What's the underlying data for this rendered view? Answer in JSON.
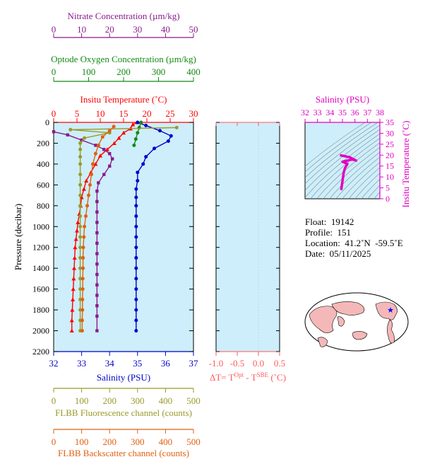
{
  "axes": {
    "nitrate": {
      "title": "Nitrate Concentration (µm/kg)",
      "ticks": [
        "0",
        "10",
        "20",
        "30",
        "40",
        "50"
      ],
      "range": [
        0,
        50
      ],
      "color": "#8b1a8b"
    },
    "oxygen": {
      "title": "Optode Oxygen Concentration (µm/kg)",
      "ticks": [
        "0",
        "100",
        "200",
        "300",
        "400"
      ],
      "range": [
        0,
        400
      ],
      "color": "#128a12"
    },
    "temperature": {
      "title": "Insitu Temperature (˚C)",
      "ticks": [
        "0",
        "5",
        "10",
        "15",
        "20",
        "25",
        "30"
      ],
      "range": [
        0,
        30
      ],
      "color": "#ff0000"
    },
    "pressure": {
      "title": "Pressure (decibar)",
      "ticks": [
        "0",
        "200",
        "400",
        "600",
        "800",
        "1000",
        "1200",
        "1400",
        "1600",
        "1800",
        "2000",
        "2200"
      ],
      "range": [
        0,
        2200
      ],
      "color": "#000000"
    },
    "salinity": {
      "title": "Salinity (PSU)",
      "ticks": [
        "32",
        "33",
        "34",
        "35",
        "36",
        "37"
      ],
      "range": [
        32,
        37
      ],
      "color": "#0000cc"
    },
    "fluorescence": {
      "title": "FLBB Fluorescence channel (counts)",
      "ticks": [
        "0",
        "100",
        "200",
        "300",
        "400",
        "500"
      ],
      "range": [
        0,
        500
      ],
      "color": "#9a9a2a"
    },
    "backscatter": {
      "title": "FLBB Backscatter channel (counts)",
      "ticks": [
        "0",
        "100",
        "200",
        "300",
        "400",
        "500"
      ],
      "range": [
        0,
        500
      ],
      "color": "#e06010"
    },
    "dt": {
      "title_prefix": "ΔT= T",
      "title_sup1": "Opt",
      "title_mid": " - T",
      "title_sup2": "SBE",
      "title_suffix": " (˚C)",
      "ticks": [
        "-1.0",
        "-0.5",
        "0.0",
        "0.5"
      ],
      "range": [
        -1.0,
        0.5
      ],
      "color": "#ff5a5a"
    }
  },
  "ts": {
    "salinity_title": "Salinity (PSU)",
    "salinity_ticks": [
      "32",
      "33",
      "34",
      "35",
      "36",
      "37",
      "38"
    ],
    "salinity_range": [
      32,
      38
    ],
    "temp_title": "Insitu Temperature (˚C)",
    "temp_ticks": [
      "0",
      "5",
      "10",
      "15",
      "20",
      "25",
      "30",
      "35"
    ],
    "temp_range": [
      0,
      35
    ],
    "color": "#e000c0"
  },
  "info": {
    "float_label": "Float:",
    "float_value": "19142",
    "profile_label": "Profile:",
    "profile_value": "151",
    "location_label": "Location:",
    "location_value": "41.2˚N  -59.5˚E",
    "date_label": "Date:",
    "date_value": "05/11/2025"
  },
  "chart_data": {
    "type": "line",
    "y_name": "Pressure (decibar)",
    "ylim": [
      2200,
      0
    ],
    "series": [
      {
        "name": "Insitu Temperature",
        "unit": "˚C",
        "color": "#ff0000",
        "marker": "triangle",
        "points": [
          [
            18,
            0
          ],
          [
            17,
            20
          ],
          [
            16.5,
            60
          ],
          [
            15,
            100
          ],
          [
            14,
            150
          ],
          [
            13,
            200
          ],
          [
            11.5,
            260
          ],
          [
            10,
            320
          ],
          [
            9,
            400
          ],
          [
            8,
            480
          ],
          [
            7,
            560
          ],
          [
            6.5,
            640
          ],
          [
            6,
            720
          ],
          [
            5.8,
            800
          ],
          [
            5.5,
            880
          ],
          [
            5.2,
            960
          ],
          [
            5,
            1040
          ],
          [
            4.8,
            1120
          ],
          [
            4.6,
            1200
          ],
          [
            4.5,
            1300
          ],
          [
            4.4,
            1400
          ],
          [
            4.3,
            1500
          ],
          [
            4.2,
            1600
          ],
          [
            4.1,
            1700
          ],
          [
            4.0,
            1800
          ],
          [
            3.9,
            1900
          ],
          [
            3.9,
            2000
          ]
        ]
      },
      {
        "name": "Salinity",
        "unit": "PSU",
        "color": "#0000cc",
        "marker": "circle",
        "points": [
          [
            35.0,
            0
          ],
          [
            35.3,
            30
          ],
          [
            35.8,
            80
          ],
          [
            36.2,
            130
          ],
          [
            36.1,
            180
          ],
          [
            35.6,
            250
          ],
          [
            35.3,
            330
          ],
          [
            35.2,
            400
          ],
          [
            35.0,
            480
          ],
          [
            35.0,
            560
          ],
          [
            34.95,
            640
          ],
          [
            34.95,
            720
          ],
          [
            34.95,
            800
          ],
          [
            34.95,
            900
          ],
          [
            34.95,
            1000
          ],
          [
            34.95,
            1100
          ],
          [
            34.95,
            1200
          ],
          [
            34.95,
            1300
          ],
          [
            34.95,
            1400
          ],
          [
            34.95,
            1500
          ],
          [
            34.95,
            1600
          ],
          [
            34.95,
            1700
          ],
          [
            34.95,
            1800
          ],
          [
            34.95,
            1900
          ],
          [
            34.95,
            2000
          ]
        ]
      },
      {
        "name": "Nitrate",
        "unit": "µm/kg",
        "color": "#8b1a8b",
        "marker": "square",
        "points": [
          [
            0,
            90
          ],
          [
            5,
            120
          ],
          [
            10,
            170
          ],
          [
            15,
            220
          ],
          [
            18,
            260
          ],
          [
            20,
            300
          ],
          [
            21,
            350
          ],
          [
            20,
            420
          ],
          [
            18,
            500
          ],
          [
            16,
            580
          ],
          [
            15.5,
            660
          ],
          [
            15.5,
            760
          ],
          [
            15.5,
            860
          ],
          [
            15.5,
            960
          ],
          [
            15.5,
            1060
          ],
          [
            15.5,
            1160
          ],
          [
            15.5,
            1260
          ],
          [
            15.5,
            1360
          ],
          [
            15.5,
            1460
          ],
          [
            15.5,
            1560
          ],
          [
            15.5,
            1660
          ],
          [
            15.5,
            1760
          ],
          [
            15.5,
            1860
          ],
          [
            15.5,
            2000
          ]
        ]
      },
      {
        "name": "Optode Oxygen",
        "unit": "µm/kg",
        "color": "#128a12",
        "marker": "circle",
        "points": [
          [
            250,
            0
          ],
          [
            245,
            50
          ],
          [
            240,
            100
          ],
          [
            235,
            160
          ],
          [
            230,
            220
          ]
        ]
      },
      {
        "name": "FLBB Fluorescence",
        "unit": "counts",
        "color": "#9a9a2a",
        "marker": "circle",
        "points": [
          [
            440,
            50
          ],
          [
            60,
            70
          ],
          [
            200,
            100
          ],
          [
            110,
            150
          ],
          [
            95,
            200
          ],
          [
            95,
            260
          ],
          [
            95,
            330
          ],
          [
            95,
            400
          ],
          [
            95,
            500
          ],
          [
            95,
            600
          ],
          [
            95,
            700
          ],
          [
            95,
            800
          ],
          [
            95,
            900
          ],
          [
            95,
            1000
          ],
          [
            95,
            1100
          ],
          [
            95,
            1200
          ],
          [
            95,
            1300
          ],
          [
            95,
            1400
          ],
          [
            95,
            1500
          ],
          [
            95,
            1600
          ],
          [
            95,
            1700
          ],
          [
            95,
            1800
          ],
          [
            95,
            1900
          ],
          [
            95,
            2000
          ]
        ]
      },
      {
        "name": "FLBB Backscatter",
        "unit": "counts",
        "color": "#e06010",
        "marker": "circle",
        "points": [
          [
            215,
            40
          ],
          [
            200,
            80
          ],
          [
            175,
            140
          ],
          [
            160,
            220
          ],
          [
            150,
            300
          ],
          [
            140,
            400
          ],
          [
            135,
            500
          ],
          [
            130,
            600
          ],
          [
            125,
            700
          ],
          [
            120,
            800
          ],
          [
            115,
            900
          ],
          [
            110,
            1000
          ],
          [
            108,
            1100
          ],
          [
            106,
            1200
          ],
          [
            105,
            1300
          ],
          [
            105,
            1400
          ],
          [
            104,
            1500
          ],
          [
            104,
            1600
          ],
          [
            103,
            1700
          ],
          [
            103,
            1800
          ],
          [
            102,
            1900
          ],
          [
            102,
            2000
          ]
        ]
      }
    ],
    "ts_diagram": {
      "x_name": "Salinity (PSU)",
      "y_name": "Insitu Temperature (˚C)",
      "xlim": [
        32,
        38
      ],
      "ylim": [
        0,
        35
      ],
      "points": [
        [
          34.9,
          4
        ],
        [
          34.95,
          6
        ],
        [
          35.0,
          8
        ],
        [
          35.05,
          10
        ],
        [
          35.1,
          12
        ],
        [
          35.2,
          14
        ],
        [
          35.4,
          16
        ],
        [
          35.0,
          17
        ],
        [
          35.8,
          18
        ],
        [
          36.1,
          17.5
        ],
        [
          35.6,
          19
        ],
        [
          34.8,
          20
        ]
      ]
    }
  }
}
